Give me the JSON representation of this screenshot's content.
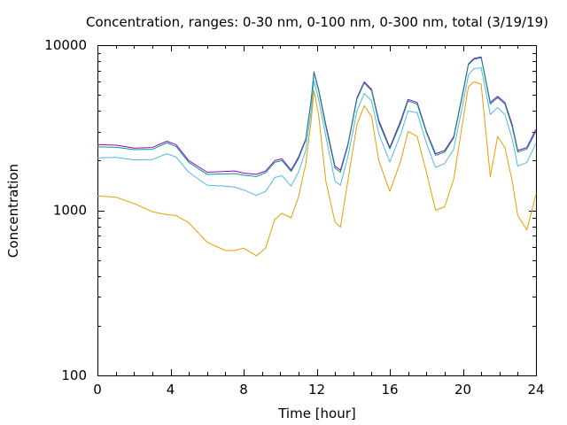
{
  "chart_data": {
    "type": "line",
    "title": "Concentration, ranges: 0-30 nm, 0-100 nm, 0-300 nm, total (3/19/19)",
    "xlabel": "Time [hour]",
    "ylabel": "Concentration",
    "xlim": [
      0,
      24
    ],
    "ylim": [
      100,
      10000
    ],
    "yscale": "log",
    "grid": false,
    "legend": "none",
    "x_ticks": [
      "0",
      "4",
      "8",
      "12",
      "16",
      "20",
      "24"
    ],
    "y_ticks": [
      "100",
      "1000",
      "10000"
    ],
    "x": [
      0,
      1,
      2,
      3,
      3.8,
      4.3,
      5,
      6,
      7,
      7.5,
      8,
      8.7,
      9.2,
      9.7,
      10.1,
      10.6,
      11,
      11.4,
      11.7,
      11.85,
      12.1,
      12.5,
      13,
      13.3,
      13.7,
      14.2,
      14.6,
      15,
      15.4,
      16,
      16.6,
      17,
      17.5,
      18,
      18.5,
      19,
      19.5,
      20,
      20.3,
      20.6,
      21,
      21.5,
      21.9,
      22.3,
      22.7,
      23,
      23.5,
      24
    ],
    "series": [
      {
        "values": [
          2500,
          2480,
          2380,
          2400,
          2620,
          2500,
          2000,
          1700,
          1720,
          1730,
          1680,
          1650,
          1730,
          2000,
          2050,
          1750,
          2100,
          2700,
          4700,
          6900,
          5400,
          3300,
          1850,
          1750,
          2500,
          4800,
          6000,
          5400,
          3500,
          2400,
          3500,
          4700,
          4500,
          3000,
          2200,
          2300,
          2800,
          5200,
          7700,
          8300,
          8500,
          4500,
          4900,
          4500,
          3300,
          2300,
          2400,
          3100
        ],
        "color": "#9400d3"
      },
      {
        "values": [
          2420,
          2410,
          2330,
          2340,
          2560,
          2440,
          1950,
          1650,
          1660,
          1670,
          1630,
          1600,
          1690,
          1950,
          2000,
          1720,
          2050,
          2650,
          4600,
          6800,
          5300,
          3200,
          1800,
          1700,
          2450,
          4700,
          5900,
          5300,
          3400,
          2350,
          3400,
          4600,
          4400,
          2950,
          2150,
          2250,
          2750,
          5100,
          7600,
          8200,
          8400,
          4400,
          4800,
          4400,
          3200,
          2250,
          2350,
          3000
        ],
        "color": "#009e73"
      },
      {
        "values": [
          2080,
          2090,
          2020,
          2030,
          2200,
          2100,
          1700,
          1420,
          1400,
          1380,
          1330,
          1230,
          1300,
          1580,
          1620,
          1400,
          1700,
          2300,
          4000,
          6100,
          4700,
          2800,
          1500,
          1420,
          2100,
          4000,
          5100,
          4600,
          2900,
          1960,
          2900,
          4000,
          3900,
          2550,
          1820,
          1920,
          2350,
          4400,
          6600,
          7200,
          7300,
          3800,
          4200,
          3800,
          2700,
          1850,
          1950,
          2550
        ],
        "color": "#56b4e9"
      },
      {
        "values": [
          1220,
          1200,
          1100,
          980,
          940,
          930,
          840,
          640,
          570,
          570,
          590,
          530,
          590,
          880,
          960,
          900,
          1200,
          1900,
          3500,
          5300,
          3800,
          1500,
          850,
          790,
          1500,
          3300,
          4300,
          3700,
          2000,
          1300,
          2000,
          3000,
          2800,
          1700,
          1000,
          1050,
          1550,
          3500,
          5600,
          6000,
          5800,
          1600,
          2800,
          2400,
          1500,
          930,
          760,
          1250
        ],
        "color": "#e69f00"
      }
    ]
  }
}
